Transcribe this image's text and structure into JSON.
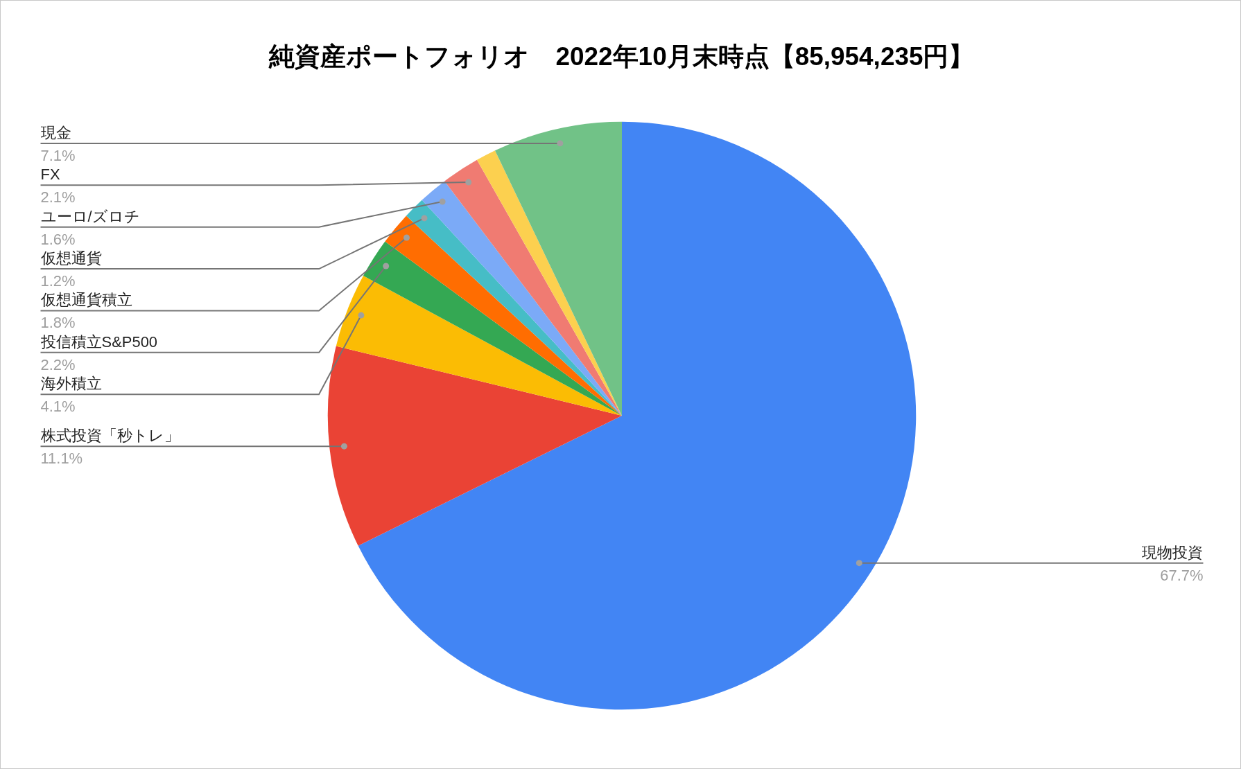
{
  "chart_data": {
    "type": "pie",
    "title": "純資産ポートフォリオ　2022年10月末時点【85,954,235円】",
    "categories": [
      "現物投資",
      "株式投資「秒トレ」",
      "海外積立",
      "投信積立S&P500",
      "仮想通貨積立",
      "仮想通貨",
      "ユーロ/ズロチ",
      "FX",
      null,
      "現金"
    ],
    "values": [
      67.7,
      11.1,
      4.1,
      2.2,
      1.8,
      1.2,
      1.6,
      2.1,
      1.1,
      7.1
    ],
    "colors": [
      "#4285f4",
      "#ea4335",
      "#fbbc04",
      "#34a853",
      "#ff6d01",
      "#46bdc6",
      "#7baaf7",
      "#f07b72",
      "#fcd04f",
      "#71c287"
    ],
    "value_labels": [
      "67.7%",
      "11.1%",
      "4.1%",
      "2.2%",
      "1.8%",
      "1.2%",
      "1.6%",
      "2.1%",
      null,
      "7.1%"
    ]
  }
}
